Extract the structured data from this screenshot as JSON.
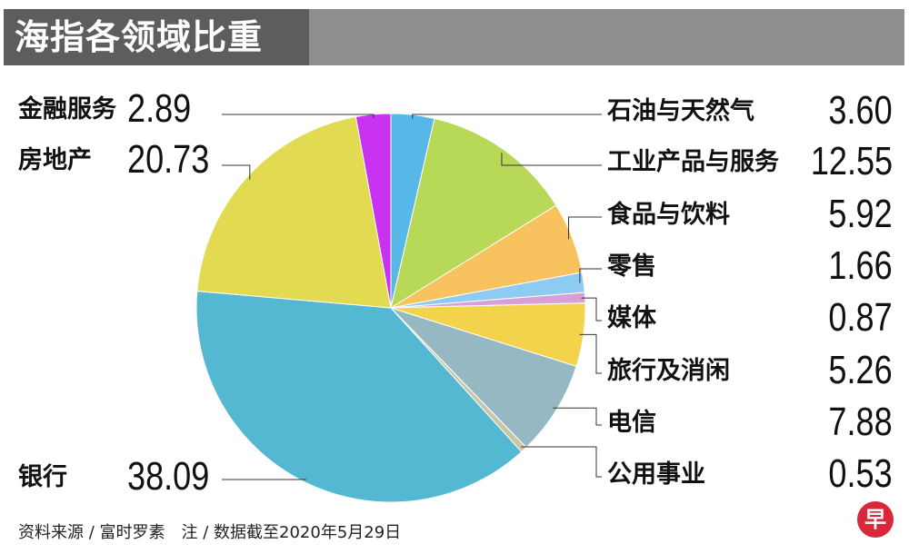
{
  "title": "海指各领域比重",
  "source_note": "资料来源 / 富时罗素　注 / 数据截至2020年5月29日",
  "logo_char": "早",
  "chart_data": {
    "type": "pie",
    "title": "海指各领域比重",
    "slices": [
      {
        "label": "石油与天然气",
        "value": 3.6,
        "value_text": "3.60",
        "color": "#57b7e6"
      },
      {
        "label": "工业产品与服务",
        "value": 12.55,
        "value_text": "12.55",
        "color": "#b8d957"
      },
      {
        "label": "食品与饮料",
        "value": 5.92,
        "value_text": "5.92",
        "color": "#f8c25f"
      },
      {
        "label": "零售",
        "value": 1.66,
        "value_text": "1.66",
        "color": "#8ecbf2"
      },
      {
        "label": "媒体",
        "value": 0.87,
        "value_text": "0.87",
        "color": "#d9a0d8"
      },
      {
        "label": "旅行及消闲",
        "value": 5.26,
        "value_text": "5.26",
        "color": "#f3d24c"
      },
      {
        "label": "电信",
        "value": 7.88,
        "value_text": "7.88",
        "color": "#95b8c2"
      },
      {
        "label": "公用事业",
        "value": 0.53,
        "value_text": "0.53",
        "color": "#c9c6a4"
      },
      {
        "label": "银行",
        "value": 38.09,
        "value_text": "38.09",
        "color": "#55b8d2"
      },
      {
        "label": "房地产",
        "value": 20.73,
        "value_text": "20.73",
        "color": "#e2da50"
      },
      {
        "label": "金融服务",
        "value": 2.89,
        "value_text": "2.89",
        "color": "#c832f0"
      }
    ]
  }
}
